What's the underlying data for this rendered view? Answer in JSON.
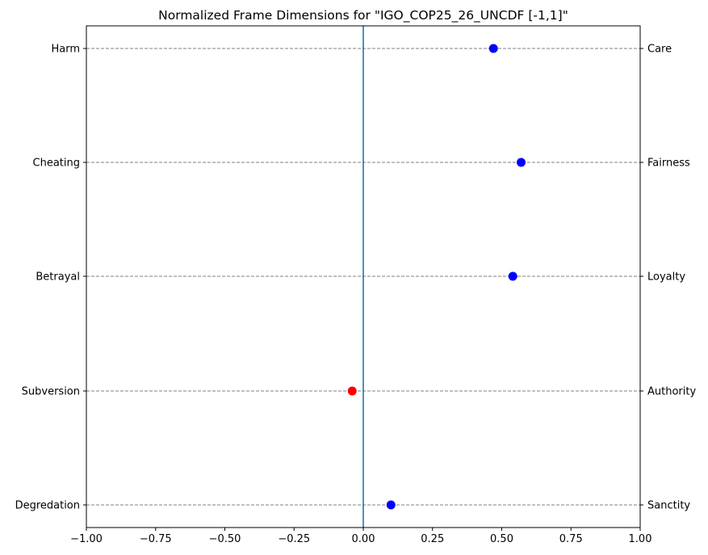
{
  "chart_data": {
    "type": "scatter",
    "title": "Normalized Frame Dimensions for \"IGO_COP25_26_UNCDF [-1,1]\"",
    "xlabel": "",
    "ylabel": "",
    "xlim": [
      -1.0,
      1.0
    ],
    "x_ticks": [
      "−1.00",
      "−0.75",
      "−0.50",
      "−0.25",
      "0.00",
      "0.25",
      "0.50",
      "0.75",
      "1.00"
    ],
    "x_tick_values": [
      -1.0,
      -0.75,
      -0.5,
      -0.25,
      0.0,
      0.25,
      0.5,
      0.75,
      1.0
    ],
    "grid": "horizontal dashed at each dimension",
    "zero_line": 0.0,
    "left_labels": [
      "Harm",
      "Cheating",
      "Betrayal",
      "Subversion",
      "Degredation"
    ],
    "right_labels": [
      "Care",
      "Fairness",
      "Loyalty",
      "Authority",
      "Sanctity"
    ],
    "values": [
      0.47,
      0.57,
      0.54,
      -0.04,
      0.1
    ],
    "positive_color": "#0000ff",
    "negative_color": "#ff0000",
    "zero_line_color": "#1f77b4",
    "grid_color": "#808080"
  }
}
